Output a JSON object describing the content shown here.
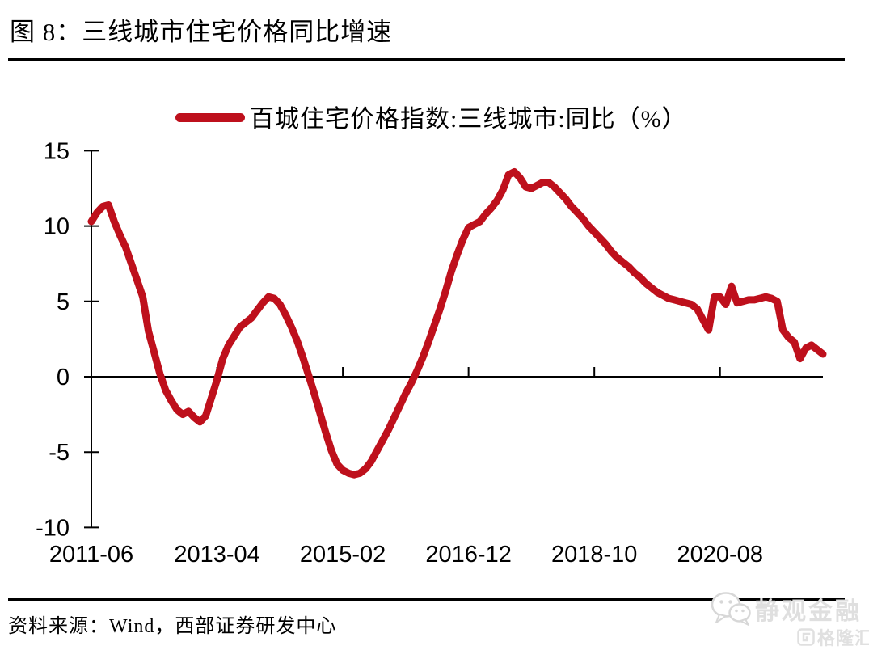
{
  "page": {
    "title": "图 8：三线城市住宅价格同比增速",
    "source_note": "资料来源：Wind，西部证券研发中心"
  },
  "legend": {
    "label": "百城住宅价格指数:三线城市:同比（%）"
  },
  "watermark": {
    "brand": "静观金融",
    "platform": "格隆汇",
    "brand_icon": "wechat-chat-bubbles-icon",
    "platform_icon": "gelonghui-logo-icon"
  },
  "colors": {
    "series_red": "#be101c",
    "axis_black": "#000000",
    "background": "#ffffff",
    "watermark_gray": "#dfdfdf"
  },
  "chart_data": {
    "type": "line",
    "series_name": "百城住宅价格指数:三线城市:同比（%）",
    "frequency": "monthly",
    "x_start": "2011-06",
    "x_end": "2022-02",
    "x_tick_labels": [
      "2011-06",
      "2013-04",
      "2015-02",
      "2016-12",
      "2018-10",
      "2020-08"
    ],
    "x_tick_interval_months": 22,
    "y_ticks": [
      15,
      10,
      5,
      0,
      -5,
      -10
    ],
    "ylim": [
      -10,
      15
    ],
    "grid": false,
    "legend_position": "top-center",
    "line_color": "#be101c",
    "values": [
      10.3,
      10.9,
      11.3,
      11.4,
      10.3,
      9.4,
      8.6,
      7.5,
      6.4,
      5.3,
      3.0,
      1.6,
      0.2,
      -0.9,
      -1.6,
      -2.2,
      -2.5,
      -2.3,
      -2.7,
      -3.0,
      -2.6,
      -1.4,
      -0.2,
      1.2,
      2.1,
      2.7,
      3.3,
      3.6,
      3.9,
      4.4,
      4.9,
      5.3,
      5.2,
      4.8,
      4.1,
      3.3,
      2.4,
      1.3,
      0.1,
      -1.1,
      -2.4,
      -3.7,
      -4.9,
      -5.8,
      -6.2,
      -6.4,
      -6.5,
      -6.4,
      -6.1,
      -5.6,
      -4.9,
      -4.2,
      -3.5,
      -2.7,
      -1.9,
      -1.1,
      -0.4,
      0.4,
      1.3,
      2.3,
      3.4,
      4.5,
      5.7,
      7.0,
      8.1,
      9.1,
      9.9,
      10.1,
      10.3,
      10.8,
      11.2,
      11.7,
      12.4,
      13.4,
      13.6,
      13.2,
      12.6,
      12.5,
      12.7,
      12.9,
      12.9,
      12.6,
      12.2,
      11.8,
      11.3,
      10.9,
      10.5,
      10.0,
      9.6,
      9.2,
      8.8,
      8.3,
      7.9,
      7.6,
      7.3,
      6.9,
      6.6,
      6.2,
      5.9,
      5.6,
      5.4,
      5.2,
      5.1,
      5.0,
      4.9,
      4.8,
      4.5,
      3.8,
      3.1,
      5.3,
      5.3,
      4.8,
      6.0,
      4.9,
      5.0,
      5.1,
      5.1,
      5.2,
      5.3,
      5.2,
      5.0,
      3.1,
      2.6,
      2.3,
      1.2,
      1.9,
      2.1,
      1.8,
      1.5
    ]
  }
}
